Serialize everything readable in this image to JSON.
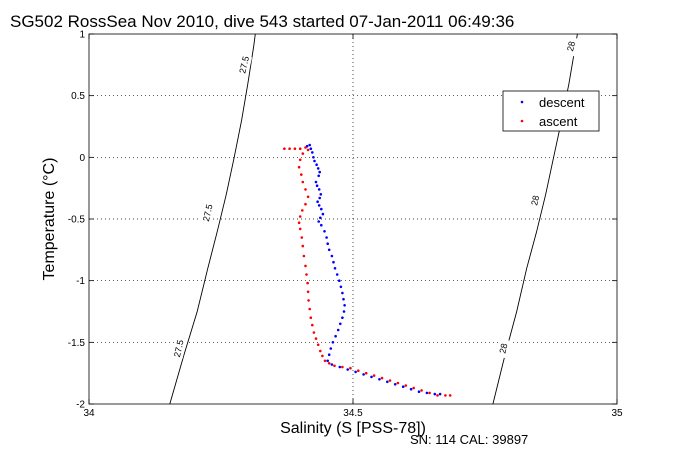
{
  "chart_data": {
    "type": "scatter",
    "title": "SG502 RossSea Nov 2010, dive 543 started 07-Jan-2011 06:49:36",
    "xlabel": "Salinity (S [PSS-78])",
    "ylabel": "Temperature (°C)",
    "xlim": [
      34,
      35
    ],
    "ylim": [
      -2,
      1
    ],
    "x_ticks": [
      "34",
      "34.5",
      "35"
    ],
    "y_ticks": [
      "-2",
      "-1.5",
      "-1",
      "-0.5",
      "0",
      "0.5",
      "1"
    ],
    "grid": "dotted",
    "legend": "top-right",
    "footer": "SN: 114  CAL: 39897",
    "density_contours": [
      {
        "label": "27.5",
        "points": [
          [
            34.153,
            -2.0
          ],
          [
            34.18,
            -1.6
          ],
          [
            34.205,
            -1.25
          ],
          [
            34.225,
            -0.9
          ],
          [
            34.243,
            -0.6
          ],
          [
            34.26,
            -0.3
          ],
          [
            34.275,
            0.0
          ],
          [
            34.289,
            0.3
          ],
          [
            34.301,
            0.6
          ],
          [
            34.312,
            0.9
          ],
          [
            34.315,
            1.0
          ]
        ],
        "labels_at": [
          [
            34.17,
            -1.55
          ],
          [
            34.225,
            -0.45
          ],
          [
            34.294,
            0.75
          ]
        ]
      },
      {
        "label": "28",
        "points": [
          [
            34.765,
            -2.0
          ],
          [
            34.788,
            -1.6
          ],
          [
            34.81,
            -1.25
          ],
          [
            34.829,
            -0.9
          ],
          [
            34.848,
            -0.6
          ],
          [
            34.865,
            -0.3
          ],
          [
            34.88,
            0.0
          ],
          [
            34.895,
            0.3
          ],
          [
            34.909,
            0.6
          ],
          [
            34.921,
            0.9
          ],
          [
            34.925,
            1.0
          ]
        ],
        "labels_at": [
          [
            34.785,
            -1.55
          ],
          [
            34.845,
            -0.35
          ],
          [
            34.913,
            0.9
          ]
        ]
      }
    ],
    "series": [
      {
        "name": "descent",
        "color": "#0000ff",
        "points": [
          [
            34.413,
            0.09
          ],
          [
            34.418,
            0.1
          ],
          [
            34.42,
            0.07
          ],
          [
            34.423,
            0.04
          ],
          [
            34.425,
            0.0
          ],
          [
            34.427,
            -0.03
          ],
          [
            34.431,
            -0.06
          ],
          [
            34.434,
            -0.09
          ],
          [
            34.437,
            -0.12
          ],
          [
            34.435,
            -0.15
          ],
          [
            34.43,
            -0.2
          ],
          [
            34.432,
            -0.23
          ],
          [
            34.436,
            -0.26
          ],
          [
            34.439,
            -0.3
          ],
          [
            34.437,
            -0.33
          ],
          [
            34.433,
            -0.36
          ],
          [
            34.436,
            -0.39
          ],
          [
            34.44,
            -0.42
          ],
          [
            34.443,
            -0.46
          ],
          [
            34.438,
            -0.49
          ],
          [
            34.435,
            -0.52
          ],
          [
            34.44,
            -0.55
          ],
          [
            34.446,
            -0.6
          ],
          [
            34.45,
            -0.65
          ],
          [
            34.452,
            -0.7
          ],
          [
            34.455,
            -0.75
          ],
          [
            34.46,
            -0.8
          ],
          [
            34.463,
            -0.85
          ],
          [
            34.466,
            -0.9
          ],
          [
            34.47,
            -0.95
          ],
          [
            34.474,
            -1.0
          ],
          [
            34.477,
            -1.05
          ],
          [
            34.48,
            -1.1
          ],
          [
            34.482,
            -1.15
          ],
          [
            34.484,
            -1.2
          ],
          [
            34.483,
            -1.25
          ],
          [
            34.48,
            -1.3
          ],
          [
            34.476,
            -1.35
          ],
          [
            34.472,
            -1.4
          ],
          [
            34.467,
            -1.45
          ],
          [
            34.462,
            -1.5
          ],
          [
            34.458,
            -1.55
          ],
          [
            34.455,
            -1.6
          ],
          [
            34.452,
            -1.65
          ],
          [
            34.46,
            -1.68
          ],
          [
            34.475,
            -1.7
          ],
          [
            34.49,
            -1.72
          ],
          [
            34.505,
            -1.74
          ],
          [
            34.52,
            -1.76
          ],
          [
            34.535,
            -1.78
          ],
          [
            34.55,
            -1.8
          ],
          [
            34.565,
            -1.82
          ],
          [
            34.58,
            -1.84
          ],
          [
            34.595,
            -1.86
          ],
          [
            34.61,
            -1.88
          ],
          [
            34.625,
            -1.9
          ],
          [
            34.64,
            -1.91
          ],
          [
            34.655,
            -1.92
          ],
          [
            34.665,
            -1.92
          ]
        ]
      },
      {
        "name": "ascent",
        "color": "#ff0000",
        "points": [
          [
            34.37,
            0.07
          ],
          [
            34.38,
            0.07
          ],
          [
            34.39,
            0.07
          ],
          [
            34.4,
            0.07
          ],
          [
            34.41,
            0.08
          ],
          [
            34.415,
            0.06
          ],
          [
            34.405,
            0.03
          ],
          [
            34.4,
            -0.02
          ],
          [
            34.398,
            -0.08
          ],
          [
            34.402,
            -0.14
          ],
          [
            34.405,
            -0.2
          ],
          [
            34.41,
            -0.26
          ],
          [
            34.415,
            -0.32
          ],
          [
            34.41,
            -0.38
          ],
          [
            34.404,
            -0.43
          ],
          [
            34.4,
            -0.48
          ],
          [
            34.398,
            -0.53
          ],
          [
            34.4,
            -0.58
          ],
          [
            34.403,
            -0.65
          ],
          [
            34.405,
            -0.72
          ],
          [
            34.407,
            -0.8
          ],
          [
            34.41,
            -0.88
          ],
          [
            34.412,
            -0.95
          ],
          [
            34.414,
            -1.02
          ],
          [
            34.415,
            -1.09
          ],
          [
            34.416,
            -1.16
          ],
          [
            34.418,
            -1.23
          ],
          [
            34.42,
            -1.3
          ],
          [
            34.423,
            -1.36
          ],
          [
            34.426,
            -1.42
          ],
          [
            34.43,
            -1.47
          ],
          [
            34.434,
            -1.52
          ],
          [
            34.438,
            -1.57
          ],
          [
            34.442,
            -1.61
          ],
          [
            34.447,
            -1.65
          ],
          [
            34.455,
            -1.67
          ],
          [
            34.465,
            -1.69
          ],
          [
            34.48,
            -1.7
          ],
          [
            34.495,
            -1.71
          ],
          [
            34.51,
            -1.73
          ],
          [
            34.525,
            -1.75
          ],
          [
            34.54,
            -1.77
          ],
          [
            34.555,
            -1.79
          ],
          [
            34.57,
            -1.81
          ],
          [
            34.585,
            -1.83
          ],
          [
            34.6,
            -1.85
          ],
          [
            34.615,
            -1.87
          ],
          [
            34.63,
            -1.89
          ],
          [
            34.645,
            -1.91
          ],
          [
            34.66,
            -1.93
          ],
          [
            34.675,
            -1.93
          ],
          [
            34.684,
            -1.93
          ]
        ]
      }
    ]
  }
}
